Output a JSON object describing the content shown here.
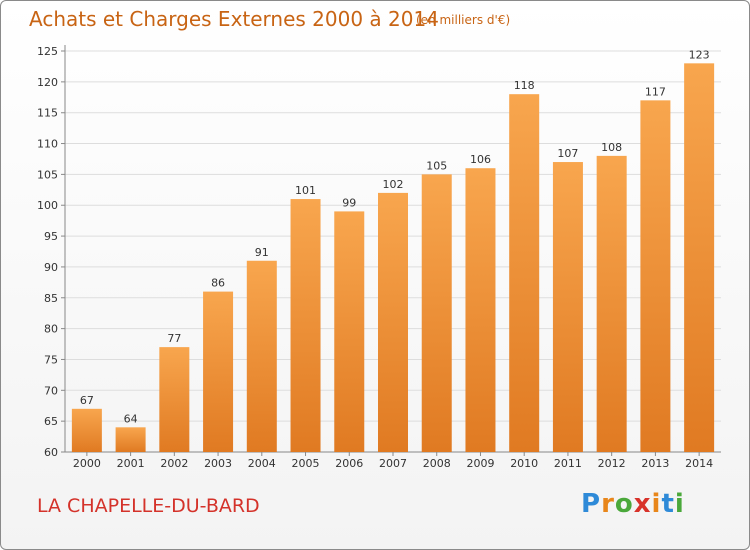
{
  "header": {
    "title": "Achats et Charges Externes 2000 à 2014",
    "unit": "(en milliers d'€)"
  },
  "footer": {
    "commune": "LA CHAPELLE-DU-BARD",
    "logo_text": "Proxiti",
    "logo_colors": [
      "#2e8ad8",
      "#e8861a",
      "#4aa83a",
      "#d8322a",
      "#e8861a",
      "#2e8ad8",
      "#4aa83a"
    ]
  },
  "colors": {
    "title": "#c86414",
    "bar_light": "#f8a64e",
    "bar_dark": "#e07a22",
    "label": "#333333",
    "grid": "#dddddd",
    "commune": "#d4322a"
  },
  "chart_data": {
    "type": "bar",
    "title": "Achats et Charges Externes 2000 à 2014",
    "xlabel": "",
    "ylabel": "",
    "categories": [
      "2000",
      "2001",
      "2002",
      "2003",
      "2004",
      "2005",
      "2006",
      "2007",
      "2008",
      "2009",
      "2010",
      "2011",
      "2012",
      "2013",
      "2014"
    ],
    "values": [
      67,
      64,
      77,
      86,
      91,
      101,
      99,
      102,
      105,
      106,
      118,
      107,
      108,
      117,
      123
    ],
    "ylim": [
      60,
      125
    ],
    "yticks": [
      60,
      65,
      70,
      75,
      80,
      85,
      90,
      95,
      100,
      105,
      110,
      115,
      120,
      125
    ],
    "grid": true
  }
}
